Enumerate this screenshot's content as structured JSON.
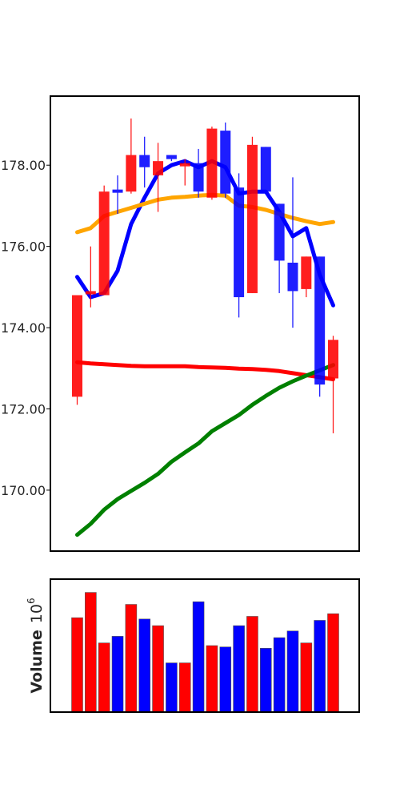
{
  "chart_data": [
    {
      "type": "candlestick",
      "title": "",
      "xlabel": "",
      "ylabel": "",
      "ylim": [
        168.5,
        179.7
      ],
      "y_ticks": [
        "170.00",
        "172.00",
        "174.00",
        "176.00",
        "178.00"
      ],
      "y_tick_values": [
        170,
        172,
        174,
        176,
        178
      ],
      "grid": false,
      "up_color": "#ff0000",
      "down_color": "#0000ff",
      "candles": [
        {
          "open": 172.3,
          "high": 174.8,
          "low": 172.1,
          "close": 174.8
        },
        {
          "open": 174.9,
          "high": 176.0,
          "low": 174.5,
          "close": 174.9
        },
        {
          "open": 174.8,
          "high": 177.5,
          "low": 174.8,
          "close": 177.35
        },
        {
          "open": 177.4,
          "high": 177.75,
          "low": 176.8,
          "close": 177.35
        },
        {
          "open": 177.35,
          "high": 179.15,
          "low": 177.3,
          "close": 178.25
        },
        {
          "open": 178.25,
          "high": 178.7,
          "low": 177.45,
          "close": 177.95
        },
        {
          "open": 177.75,
          "high": 178.55,
          "low": 176.85,
          "close": 178.1
        },
        {
          "open": 178.25,
          "high": 178.25,
          "low": 178.1,
          "close": 178.15
        },
        {
          "open": 178.0,
          "high": 178.15,
          "low": 177.5,
          "close": 178.05
        },
        {
          "open": 178.05,
          "high": 178.4,
          "low": 177.2,
          "close": 177.35
        },
        {
          "open": 177.2,
          "high": 178.95,
          "low": 177.15,
          "close": 178.9
        },
        {
          "open": 178.85,
          "high": 179.05,
          "low": 177.2,
          "close": 177.3
        },
        {
          "open": 177.45,
          "high": 177.8,
          "low": 174.25,
          "close": 174.75
        },
        {
          "open": 174.85,
          "high": 178.7,
          "low": 174.85,
          "close": 178.5
        },
        {
          "open": 178.45,
          "high": 178.45,
          "low": 177.35,
          "close": 177.35
        },
        {
          "open": 177.05,
          "high": 177.05,
          "low": 174.85,
          "close": 175.65
        },
        {
          "open": 175.6,
          "high": 177.7,
          "low": 174.0,
          "close": 174.9
        },
        {
          "open": 174.95,
          "high": 175.75,
          "low": 174.75,
          "close": 175.75
        },
        {
          "open": 175.75,
          "high": 175.75,
          "low": 172.3,
          "close": 172.6
        },
        {
          "open": 172.75,
          "high": 173.8,
          "low": 171.4,
          "close": 173.7
        }
      ],
      "series": [
        {
          "color": "#0000ff",
          "values": [
            175.25,
            174.75,
            174.85,
            175.4,
            176.55,
            177.2,
            177.8,
            178.0,
            178.1,
            177.95,
            178.1,
            177.95,
            177.3,
            177.35,
            177.35,
            176.85,
            176.25,
            176.45,
            175.3,
            174.55
          ]
        },
        {
          "color": "#ffa500",
          "values": [
            176.35,
            176.45,
            176.75,
            176.85,
            176.95,
            177.05,
            177.15,
            177.2,
            177.22,
            177.25,
            177.27,
            177.25,
            177.0,
            176.97,
            176.9,
            176.8,
            176.7,
            176.62,
            176.55,
            176.6
          ]
        },
        {
          "color": "#ff0000",
          "values": [
            173.15,
            173.12,
            173.1,
            173.08,
            173.06,
            173.05,
            173.05,
            173.05,
            173.05,
            173.03,
            173.02,
            173.01,
            172.99,
            172.98,
            172.96,
            172.93,
            172.88,
            172.83,
            172.78,
            172.73
          ]
        },
        {
          "color": "#008000",
          "values": [
            168.9,
            169.17,
            169.52,
            169.78,
            169.98,
            170.18,
            170.4,
            170.7,
            170.93,
            171.15,
            171.45,
            171.65,
            171.85,
            172.1,
            172.32,
            172.52,
            172.68,
            172.82,
            172.95,
            173.08
          ]
        }
      ]
    },
    {
      "type": "bar",
      "title": "",
      "xlabel": "",
      "ylabel": "Volume $10^6$",
      "ylabel_text": "Volume",
      "ylabel_exponent": "10",
      "ylabel_power": "6",
      "values": [
        0.71,
        0.9,
        0.52,
        0.57,
        0.81,
        0.7,
        0.65,
        0.37,
        0.37,
        0.83,
        0.5,
        0.49,
        0.65,
        0.72,
        0.48,
        0.56,
        0.61,
        0.52,
        0.69,
        0.74
      ],
      "colors": [
        "#ff0000",
        "#ff0000",
        "#ff0000",
        "#0000ff",
        "#ff0000",
        "#0000ff",
        "#ff0000",
        "#0000ff",
        "#ff0000",
        "#0000ff",
        "#ff0000",
        "#0000ff",
        "#0000ff",
        "#ff0000",
        "#0000ff",
        "#0000ff",
        "#0000ff",
        "#ff0000",
        "#0000ff",
        "#ff0000"
      ],
      "ylim": [
        0,
        1.0
      ],
      "grid": false
    }
  ]
}
